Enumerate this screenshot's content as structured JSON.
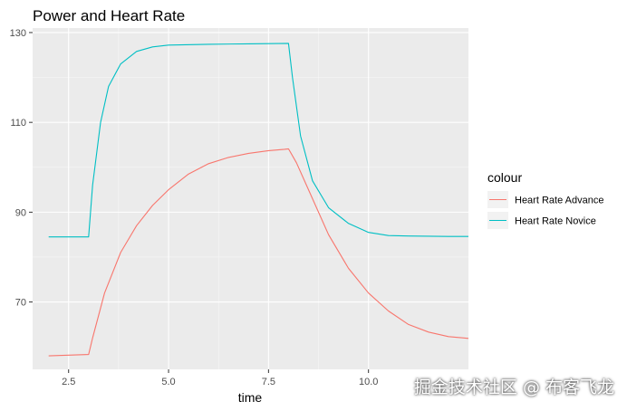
{
  "chart_data": {
    "type": "line",
    "title": "Power and Heart Rate",
    "xlabel": "time",
    "ylabel": "",
    "xlim": [
      1.6,
      12.5
    ],
    "ylim": [
      55,
      131
    ],
    "x_ticks": [
      2.5,
      5.0,
      7.5,
      10.0
    ],
    "x_tick_labels": [
      "2.5",
      "5.0",
      "7.5",
      "10.0"
    ],
    "y_ticks": [
      70,
      90,
      110,
      130
    ],
    "y_tick_labels": [
      "70",
      "90",
      "110",
      "130"
    ],
    "grid": true,
    "legend": {
      "title": "colour",
      "placement": "right"
    },
    "series": [
      {
        "name": "Heart Rate Advance",
        "color": "#F8766D",
        "points": [
          [
            2,
            58
          ],
          [
            3,
            58.3
          ],
          [
            3.1,
            62
          ],
          [
            3.4,
            72
          ],
          [
            3.8,
            81
          ],
          [
            4.2,
            87
          ],
          [
            4.6,
            91.5
          ],
          [
            5,
            95
          ],
          [
            5.5,
            98.5
          ],
          [
            6,
            100.8
          ],
          [
            6.5,
            102.2
          ],
          [
            7,
            103.1
          ],
          [
            7.5,
            103.7
          ],
          [
            7.9,
            104
          ],
          [
            8,
            104.1
          ],
          [
            8.2,
            101
          ],
          [
            8.5,
            95
          ],
          [
            9,
            85
          ],
          [
            9.5,
            77.5
          ],
          [
            10,
            72
          ],
          [
            10.5,
            68
          ],
          [
            11,
            65
          ],
          [
            11.5,
            63.3
          ],
          [
            12,
            62.3
          ],
          [
            12.5,
            61.9
          ]
        ]
      },
      {
        "name": "Heart Rate Novice",
        "color": "#00BFC4",
        "points": [
          [
            2,
            84.5
          ],
          [
            3,
            84.5
          ],
          [
            3.1,
            96
          ],
          [
            3.3,
            110
          ],
          [
            3.5,
            118
          ],
          [
            3.8,
            123
          ],
          [
            4.2,
            125.8
          ],
          [
            4.6,
            126.8
          ],
          [
            5,
            127.2
          ],
          [
            6,
            127.4
          ],
          [
            7,
            127.5
          ],
          [
            8,
            127.6
          ],
          [
            8.1,
            120
          ],
          [
            8.3,
            107
          ],
          [
            8.6,
            97
          ],
          [
            9,
            91
          ],
          [
            9.5,
            87.5
          ],
          [
            10,
            85.5
          ],
          [
            10.5,
            84.8
          ],
          [
            11,
            84.7
          ],
          [
            12,
            84.6
          ],
          [
            12.5,
            84.6
          ]
        ]
      }
    ]
  },
  "watermark": "掘金技术社区 @ 布客飞龙"
}
